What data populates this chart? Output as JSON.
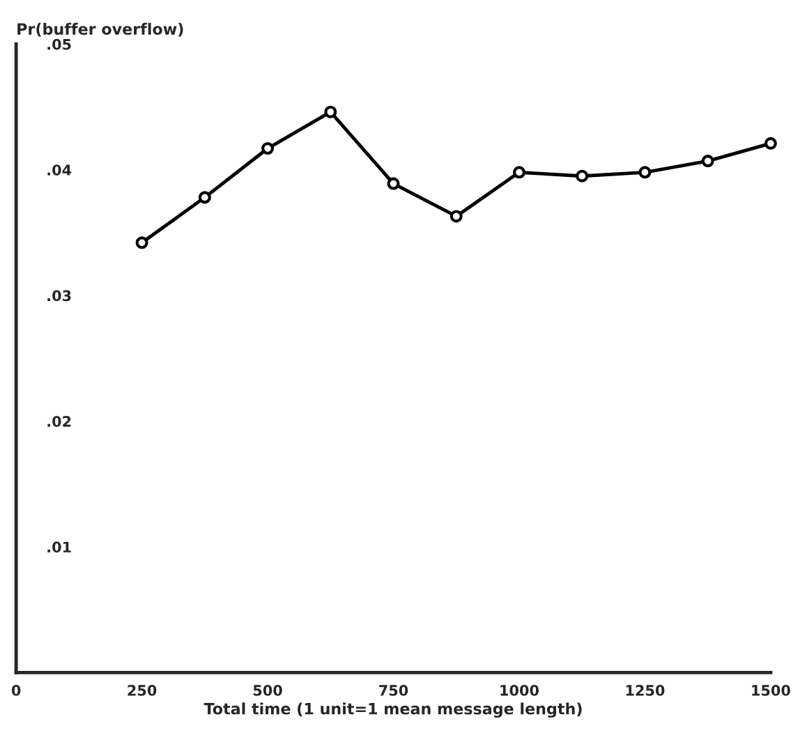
{
  "chart_data": {
    "type": "line",
    "ylabel": "Pr(buffer overflow)",
    "xlabel": "Total time (1 unit=1 mean message length)",
    "x": [
      250,
      375,
      500,
      625,
      750,
      875,
      1000,
      1125,
      1250,
      1375,
      1500
    ],
    "series": [
      {
        "color": "#000000",
        "values": [
          0.0342,
          0.0378,
          0.0417,
          0.0446,
          0.0389,
          0.0363,
          0.0398,
          0.0395,
          0.0398,
          0.0407,
          0.0421
        ]
      }
    ],
    "xlim": [
      0,
      1500
    ],
    "xticks": [
      0,
      250,
      500,
      750,
      1000,
      1250,
      1500
    ],
    "ylim": [
      0,
      0.05
    ],
    "yticks": [
      {
        "value": 0.01,
        "label": ".01"
      },
      {
        "value": 0.02,
        "label": ".02"
      },
      {
        "value": 0.03,
        "label": ".03"
      },
      {
        "value": 0.04,
        "label": ".04"
      },
      {
        "value": 0.05,
        "label": ".05"
      }
    ],
    "marker": "circle",
    "line_style": "solid",
    "grid": false,
    "legend": false
  }
}
